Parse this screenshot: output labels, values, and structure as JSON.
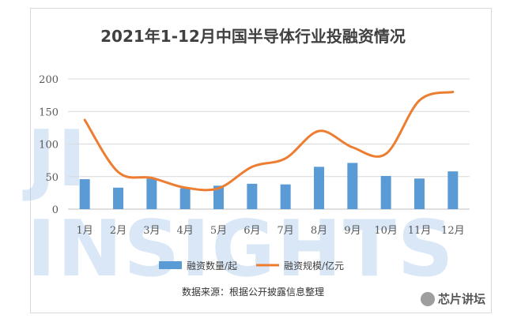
{
  "chart_data": {
    "type": "bar",
    "title": "2021年1-12月中国半导体行业投融资情况",
    "categories": [
      "1月",
      "2月",
      "3月",
      "4月",
      "5月",
      "6月",
      "7月",
      "8月",
      "9月",
      "10月",
      "11月",
      "12月"
    ],
    "series": [
      {
        "name": "融资数量/起",
        "kind": "bar",
        "color": "#5b9bd5",
        "values": [
          46,
          33,
          47,
          32,
          36,
          39,
          38,
          65,
          71,
          51,
          47,
          58
        ]
      },
      {
        "name": "融资规模/亿元",
        "kind": "line",
        "color": "#ed7d31",
        "values": [
          137,
          57,
          48,
          33,
          32,
          65,
          78,
          120,
          95,
          85,
          167,
          180
        ]
      }
    ],
    "ylim": [
      0,
      200
    ],
    "yticks": [
      0,
      50,
      100,
      150,
      200
    ],
    "grid": true,
    "legend": "bottom",
    "source": "数据来源：根据公开披露信息整理",
    "watermark": "JI INSIGHTS",
    "account": "芯片讲坛"
  }
}
